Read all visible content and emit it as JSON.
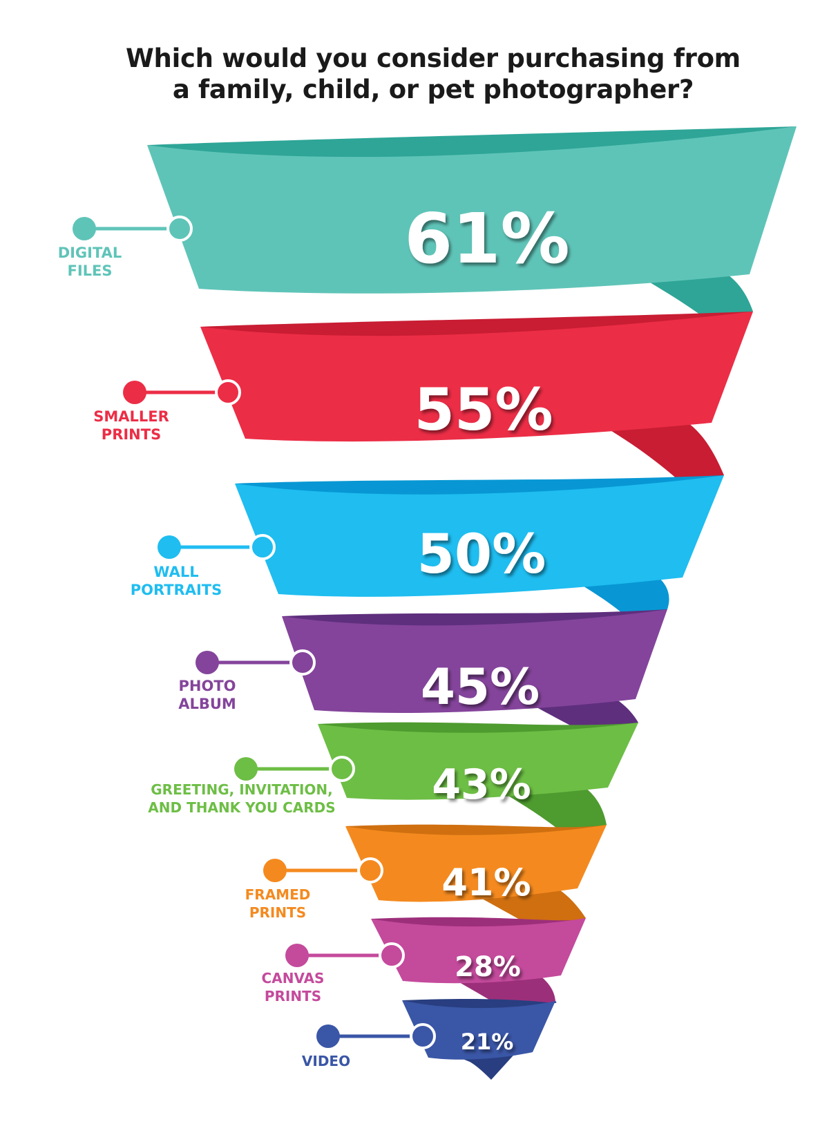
{
  "title_lines": [
    "Which would you consider purchasing from",
    "a family, child, or pet photographer?"
  ],
  "chart_data": {
    "type": "bar",
    "title": "Which would you consider purchasing from a family, child, or pet photographer?",
    "categories": [
      "DIGITAL FILES",
      "SMALLER PRINTS",
      "WALL PORTRAITS",
      "PHOTO ALBUM",
      "GREETING, INVITATION, AND THANK YOU CARDS",
      "FRAMED PRINTS",
      "CANVAS PRINTS",
      "VIDEO"
    ],
    "values": [
      61,
      55,
      50,
      45,
      43,
      41,
      28,
      21
    ],
    "value_labels": [
      "61%",
      "55%",
      "50%",
      "45%",
      "43%",
      "41%",
      "28%",
      "21%"
    ],
    "label_lines": [
      [
        "DIGITAL",
        "FILES"
      ],
      [
        "SMALLER",
        "PRINTS"
      ],
      [
        "WALL",
        "PORTRAITS"
      ],
      [
        "PHOTO",
        "ALBUM"
      ],
      [
        "GREETING, INVITATION,",
        "AND THANK YOU CARDS"
      ],
      [
        "FRAMED",
        "PRINTS"
      ],
      [
        "CANVAS",
        "PRINTS"
      ],
      [
        "VIDEO"
      ]
    ],
    "colors": [
      "#5fc4b8",
      "#ec2d46",
      "#1fbdf0",
      "#84449b",
      "#6dbe45",
      "#f48a1f",
      "#c44a9c",
      "#3a56a6"
    ],
    "dark_colors": [
      "#2ea597",
      "#c81d33",
      "#0897d4",
      "#5e2f7d",
      "#4e9b2f",
      "#cf6f10",
      "#9c2f7a",
      "#283e80"
    ]
  }
}
